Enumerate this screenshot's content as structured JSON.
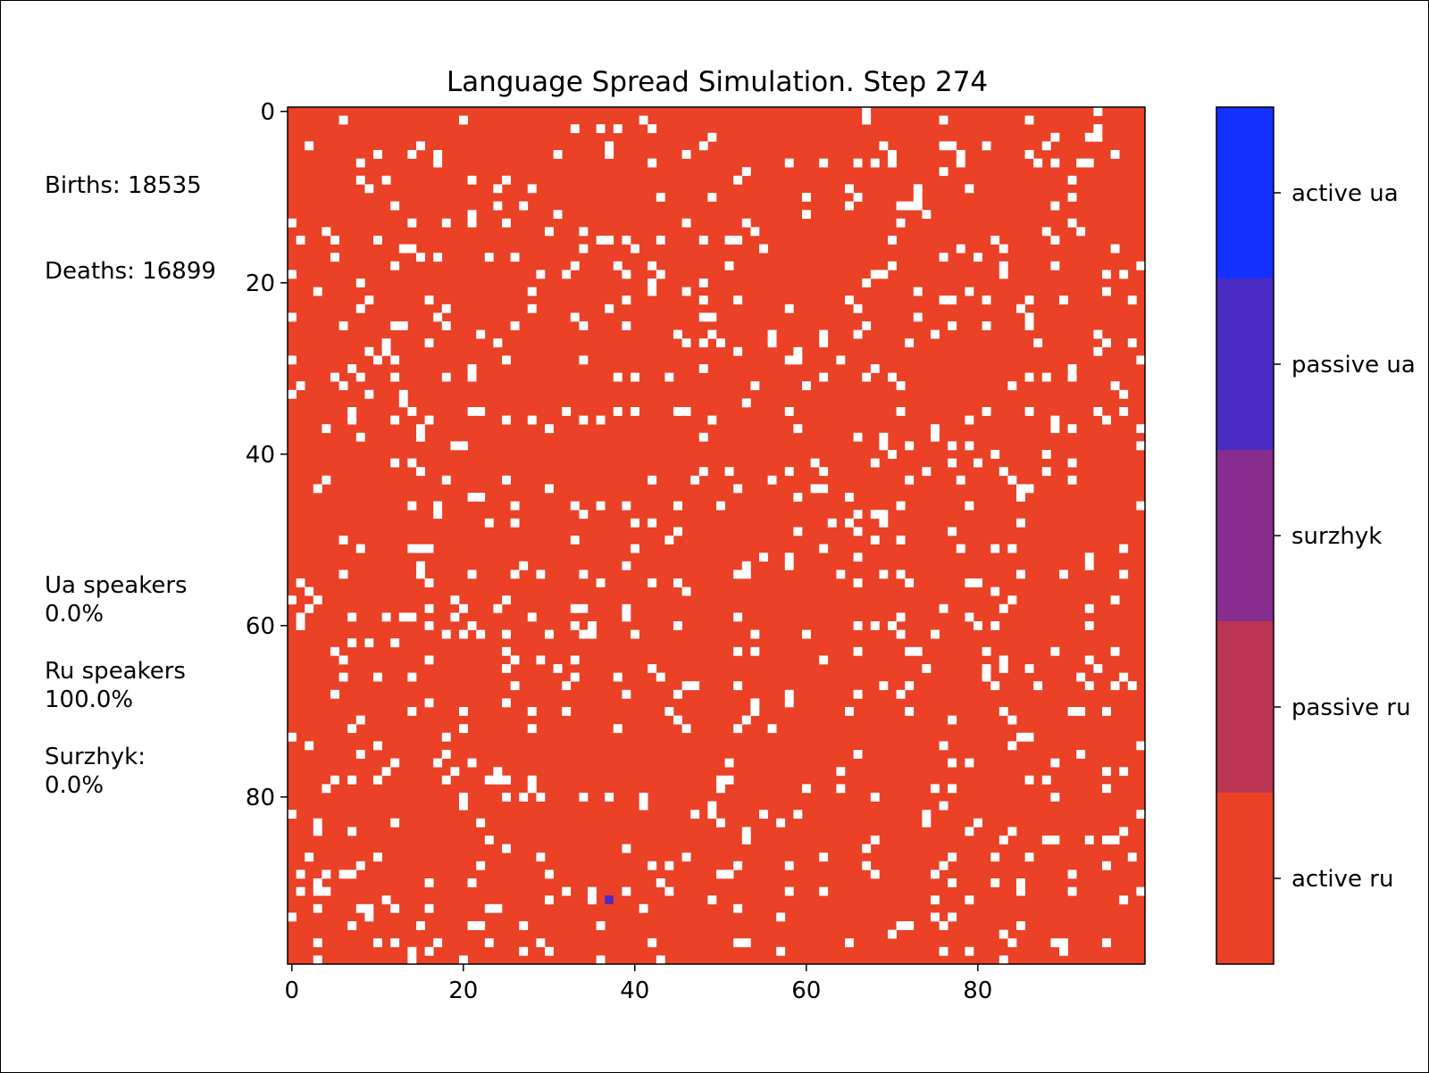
{
  "chart_data": {
    "type": "heatmap",
    "title": "Language Spread Simulation. Step 274",
    "xlabel": "",
    "ylabel": "",
    "xlim": [
      0,
      99
    ],
    "ylim": [
      0,
      99
    ],
    "grid": false,
    "grid_size": [
      100,
      100
    ],
    "x_ticks": [
      "0",
      "20",
      "40",
      "60",
      "80"
    ],
    "y_ticks": [
      "0",
      "20",
      "40",
      "60",
      "80"
    ],
    "tick_values": [
      0,
      20,
      40,
      60,
      80
    ],
    "background_state": "active ru",
    "empty_cell_fraction": 0.07,
    "colorbar": {
      "labels": [
        "active ua",
        "passive ua",
        "surzhyk",
        "passive ru",
        "active ru"
      ],
      "colors": [
        "#1432ff",
        "#4a2bc4",
        "#862d8f",
        "#bb3552",
        "#ea4127"
      ]
    },
    "highlighted_cells": [
      {
        "x": 37,
        "y": 92,
        "state": "passive ua"
      }
    ]
  },
  "stats": {
    "births": "Births: 18535",
    "deaths": "Deaths: 16899",
    "ua_label": "Ua speakers",
    "ua_value": "0.0%",
    "ru_label": "Ru speakers",
    "ru_value": "100.0%",
    "surzhyk_label": "Surzhyk:",
    "surzhyk_value": "0.0%"
  },
  "colors": {
    "empty_cell": "#ffffff",
    "frame": "#000000"
  }
}
